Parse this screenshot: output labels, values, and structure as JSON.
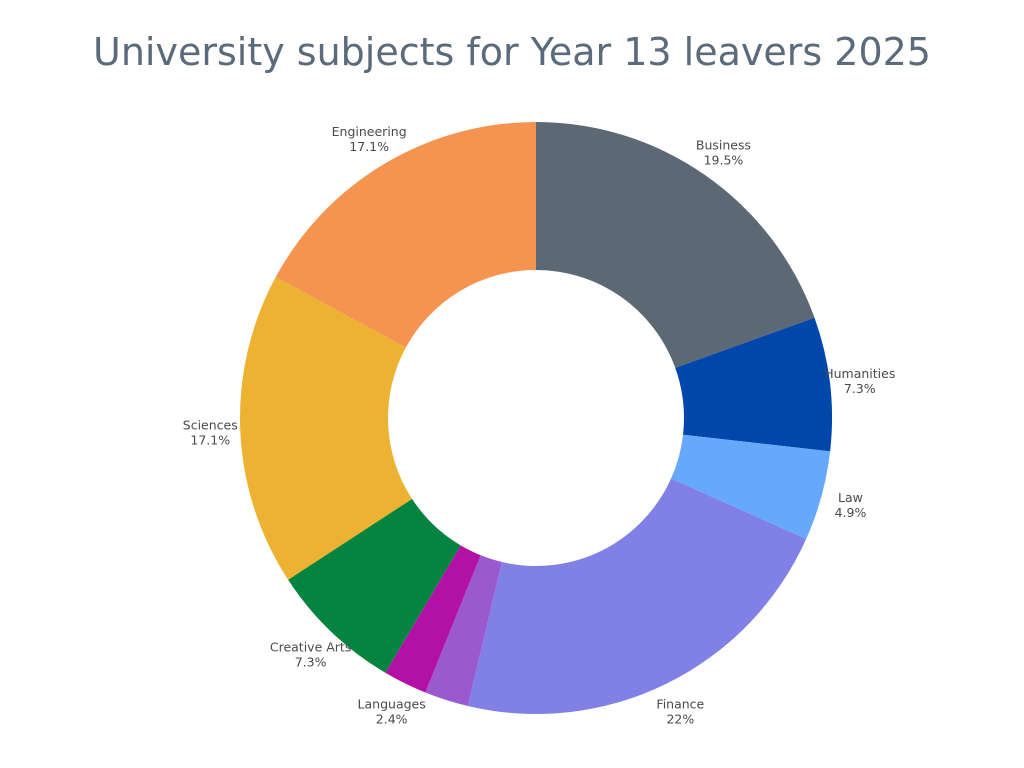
{
  "chart_data": {
    "type": "pie",
    "title": "University subjects for Year 13 leavers 2025",
    "slices": [
      {
        "label": "Business",
        "value": 19.5,
        "value_label": "19.5%",
        "color": "#5d6875"
      },
      {
        "label": "Humanities",
        "value": 7.3,
        "value_label": "7.3%",
        "color": "#0047ab"
      },
      {
        "label": "Law",
        "value": 4.9,
        "value_label": "4.9%",
        "color": "#66a8fa"
      },
      {
        "label": "Finance",
        "value": 22,
        "value_label": "22%",
        "color": "#8080e6"
      },
      {
        "label": "",
        "value": 2.4,
        "value_label": "",
        "color": "#9b59d0"
      },
      {
        "label": "Languages",
        "value": 2.4,
        "value_label": "2.4%",
        "color": "#b311a6"
      },
      {
        "label": "Creative Arts",
        "value": 7.3,
        "value_label": "7.3%",
        "color": "#058440"
      },
      {
        "label": "Sciences",
        "value": 17.1,
        "value_label": "17.1%",
        "color": "#edb231"
      },
      {
        "label": "Engineering",
        "value": 17.1,
        "value_label": "17.1%",
        "color": "#f59351"
      }
    ],
    "hole": true,
    "legend": "none"
  }
}
